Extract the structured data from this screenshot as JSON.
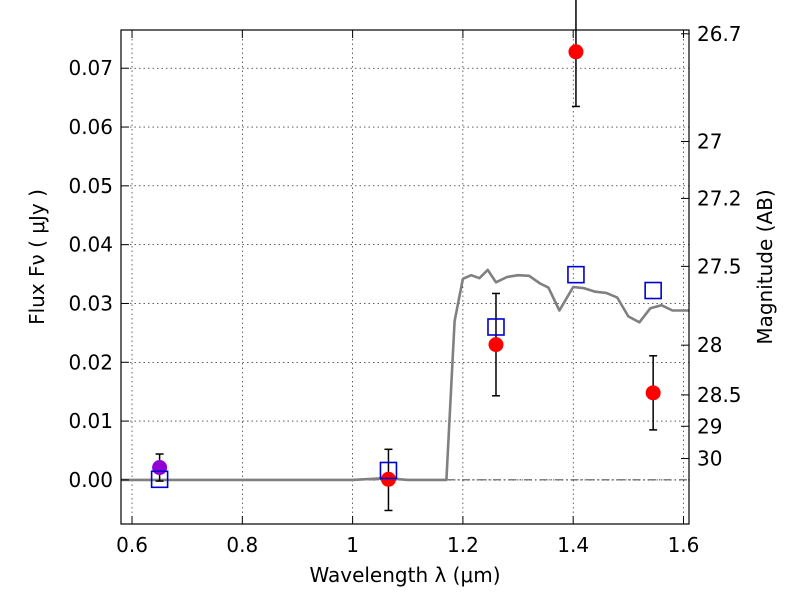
{
  "chart_data": {
    "type": "scatter",
    "xlabel": "Wavelength  λ (μm)",
    "ylabel": "Flux  Fν  ( μJy )",
    "y2label": "Magnitude (AB)",
    "xlim": [
      0.58,
      1.61
    ],
    "ylim": [
      -0.0075,
      0.0765
    ],
    "x_ticks": [
      0.6,
      0.8,
      1.0,
      1.2,
      1.4,
      1.6
    ],
    "x_tick_labels": [
      "0.6",
      "0.8",
      "1",
      "1.2",
      "1.4",
      "1.6"
    ],
    "y_ticks": [
      0.0,
      0.01,
      0.02,
      0.03,
      0.04,
      0.05,
      0.06,
      0.07
    ],
    "y_tick_labels": [
      "0.00",
      "0.01",
      "0.02",
      "0.03",
      "0.04",
      "0.05",
      "0.06",
      "0.07"
    ],
    "mag_ticks": [
      26.7,
      27,
      27.2,
      27.5,
      28,
      28.5,
      29,
      30
    ],
    "mag_tick_labels": [
      "26.7",
      "27",
      "27.2",
      "27.5",
      "28",
      "28.5",
      "29",
      "30"
    ],
    "grid": true,
    "model_sed": {
      "color": "#808080",
      "x": [
        0.58,
        0.7,
        0.8,
        0.9,
        1.0,
        1.06,
        1.1,
        1.17,
        1.185,
        1.2,
        1.215,
        1.23,
        1.245,
        1.26,
        1.28,
        1.3,
        1.32,
        1.34,
        1.355,
        1.375,
        1.4,
        1.42,
        1.44,
        1.46,
        1.48,
        1.5,
        1.52,
        1.54,
        1.56,
        1.58,
        1.61
      ],
      "y": [
        0.0,
        0.0,
        0.0,
        0.0,
        0.0,
        0.0003,
        0.0,
        0.0,
        0.027,
        0.0342,
        0.0348,
        0.0343,
        0.0357,
        0.0336,
        0.0345,
        0.0348,
        0.0347,
        0.0334,
        0.0327,
        0.0288,
        0.0328,
        0.0326,
        0.032,
        0.0318,
        0.031,
        0.0278,
        0.0268,
        0.0292,
        0.0297,
        0.0288,
        0.0288
      ]
    },
    "series": [
      {
        "name": "",
        "marker": "circle",
        "color": "#ff0000",
        "x": [
          1.065,
          1.26,
          1.405,
          1.545
        ],
        "y": [
          0.0001,
          0.023,
          0.0728,
          0.0148
        ],
        "yerr_low": [
          0.0053,
          0.0087,
          0.0093,
          0.0063
        ],
        "yerr_high": [
          0.0051,
          0.0087,
          0.0093,
          0.0063
        ]
      },
      {
        "name": "",
        "marker": "circle",
        "color": "#9400d3",
        "x": [
          0.65
        ],
        "y": [
          0.0021
        ],
        "yerr_low": [
          0.0023
        ],
        "yerr_high": [
          0.0023
        ]
      },
      {
        "name": "",
        "marker": "square",
        "color": "#0000cc",
        "x": [
          0.65,
          1.065,
          1.26,
          1.405,
          1.545
        ],
        "y": [
          0.0001,
          0.0016,
          0.026,
          0.0349,
          0.0322
        ]
      }
    ],
    "reference_line": {
      "y": 0.0,
      "style": "dashdot",
      "color": "#000000"
    }
  }
}
